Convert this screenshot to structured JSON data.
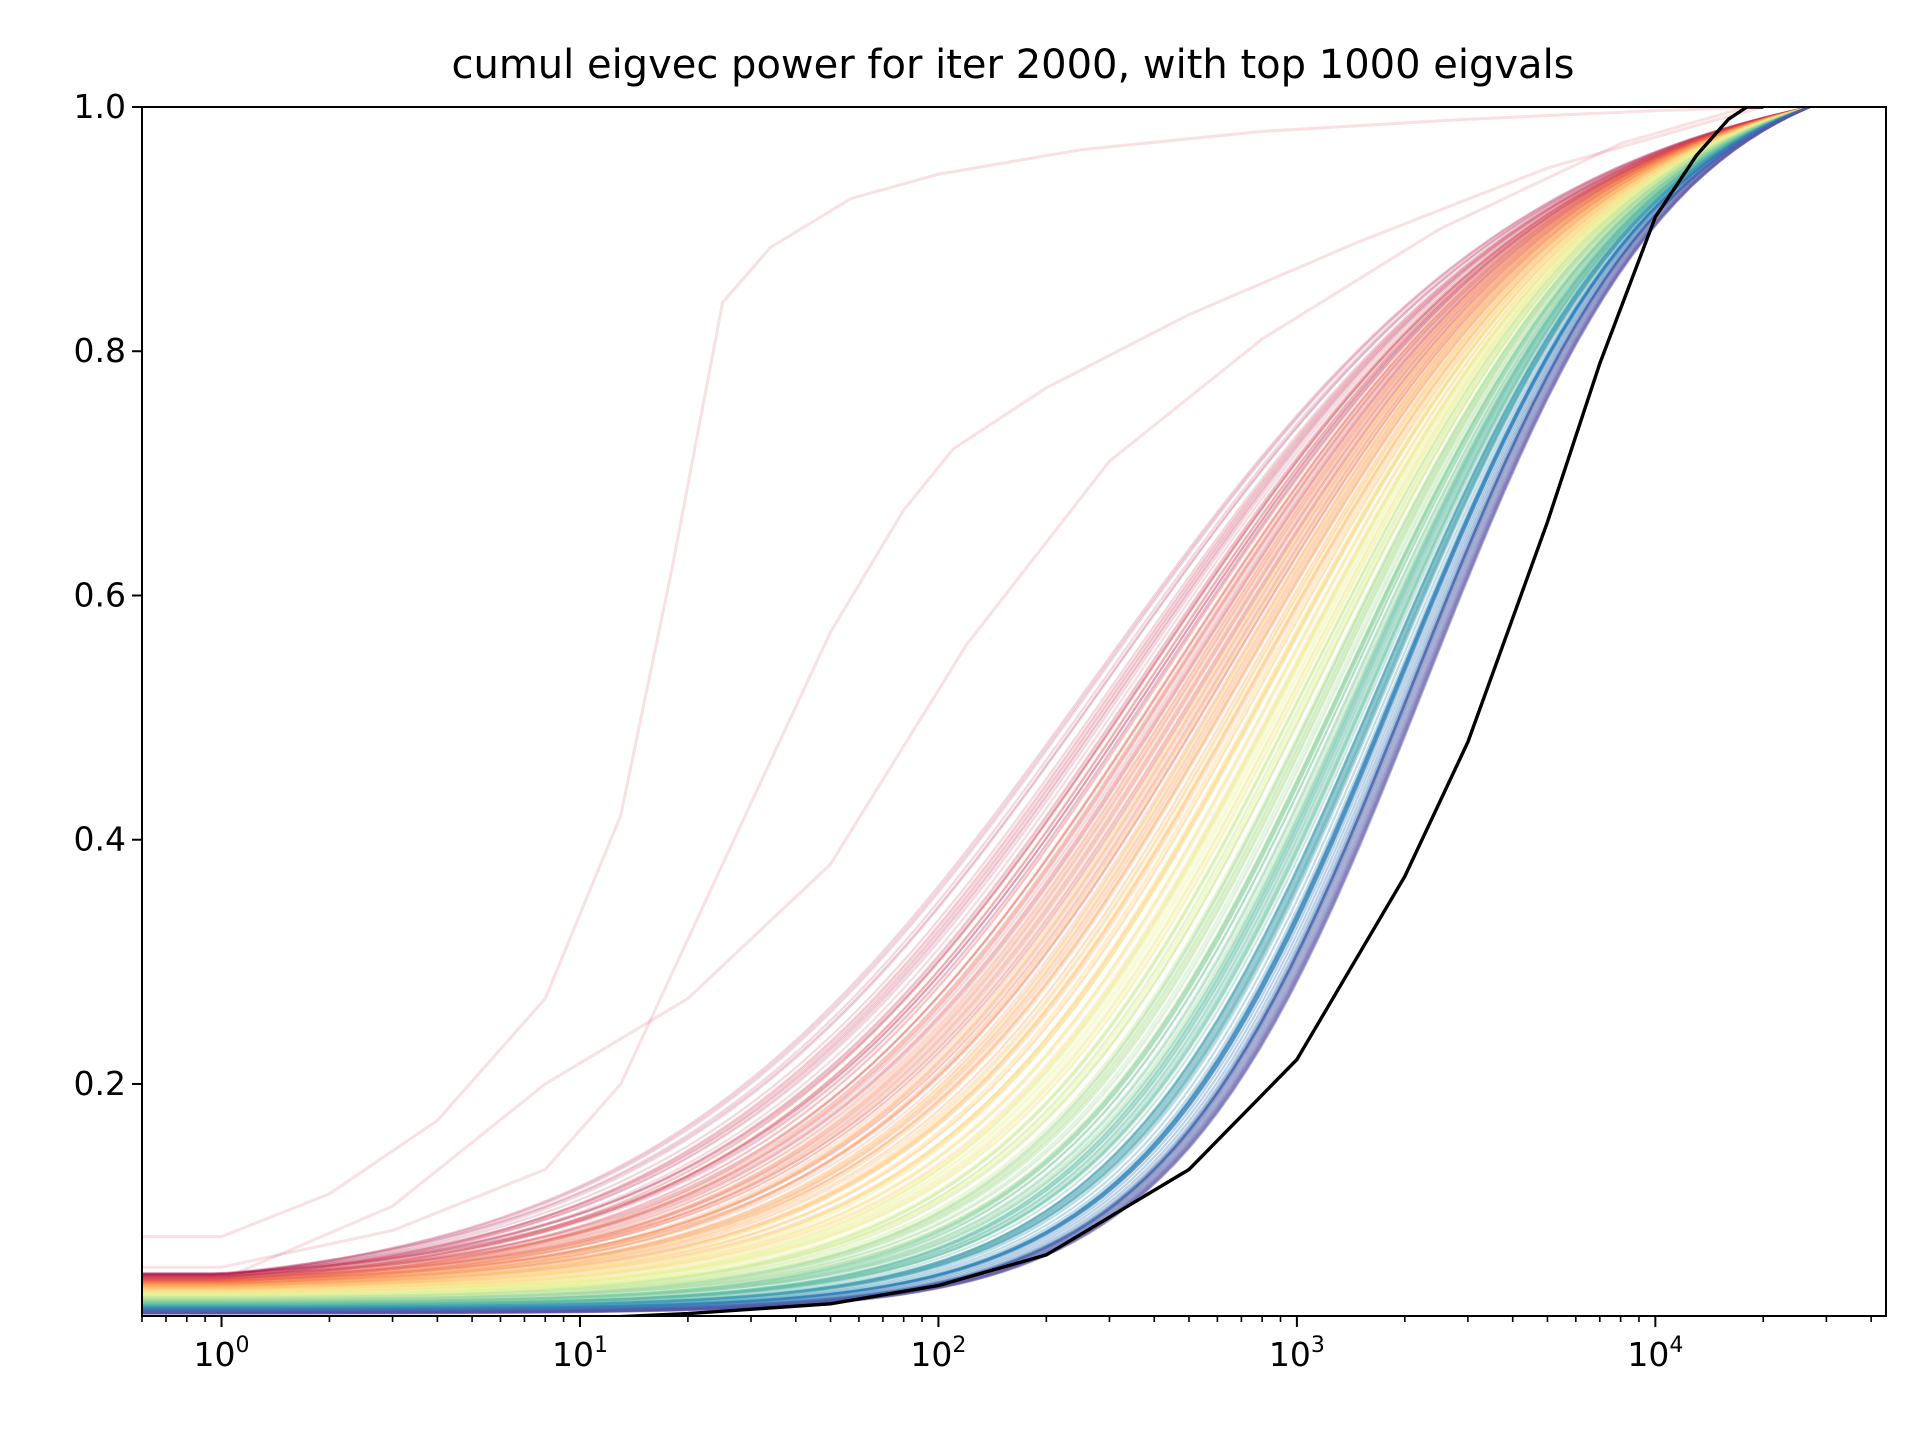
{
  "chart_data": {
    "type": "line",
    "title": "cumul eigvec power for iter 2000, with top 1000 eigvals",
    "xlabel": "",
    "ylabel": "",
    "x_scale": "log",
    "xlim": [
      0.6,
      44000
    ],
    "ylim": [
      0.01,
      1.0
    ],
    "grid": false,
    "legend": "none",
    "x_ticks": [
      {
        "base": "10",
        "exp": "0",
        "value": 1
      },
      {
        "base": "10",
        "exp": "1",
        "value": 10
      },
      {
        "base": "10",
        "exp": "2",
        "value": 100
      },
      {
        "base": "10",
        "exp": "3",
        "value": 1000
      },
      {
        "base": "10",
        "exp": "4",
        "value": 10000
      }
    ],
    "y_ticks": [
      {
        "label": "0.2",
        "value": 0.2
      },
      {
        "label": "0.4",
        "value": 0.4
      },
      {
        "label": "0.6",
        "value": 0.6
      },
      {
        "label": "0.8",
        "value": 0.8
      },
      {
        "label": "1.0",
        "value": 1.0
      }
    ],
    "colormap": [
      "#9e0142",
      "#d53e4f",
      "#f46d43",
      "#fdae61",
      "#fee08b",
      "#e6f598",
      "#abdda4",
      "#66c2a5",
      "#3288bd",
      "#5e4fa2"
    ],
    "band": {
      "line_count": 1000,
      "x_max": 27000,
      "line_alpha": 0.1,
      "half_power_x": {
        "first": 300,
        "last": 2300
      },
      "power_at_x1": {
        "first": 0.045,
        "last": 0.012
      }
    },
    "outlier_series": [
      {
        "x": [
          0.6,
          1,
          2,
          4,
          8,
          13,
          18,
          25,
          34,
          57,
          100,
          250,
          800,
          3000,
          10000,
          20000
        ],
        "y": [
          0.075,
          0.075,
          0.11,
          0.17,
          0.27,
          0.42,
          0.62,
          0.84,
          0.885,
          0.925,
          0.945,
          0.965,
          0.98,
          0.99,
          0.997,
          1.0
        ],
        "color": "#d53e4f",
        "alpha": 0.16
      },
      {
        "x": [
          0.6,
          1,
          3,
          8,
          13,
          25,
          50,
          80,
          110,
          200,
          500,
          1500,
          5000,
          15000,
          20000
        ],
        "y": [
          0.05,
          0.05,
          0.08,
          0.13,
          0.2,
          0.38,
          0.57,
          0.67,
          0.72,
          0.77,
          0.83,
          0.89,
          0.95,
          0.99,
          1.0
        ],
        "color": "#d53e4f",
        "alpha": 0.16
      },
      {
        "x": [
          0.6,
          1,
          3,
          8,
          20,
          50,
          120,
          300,
          800,
          2500,
          8000,
          18000
        ],
        "y": [
          0.04,
          0.04,
          0.1,
          0.2,
          0.27,
          0.38,
          0.56,
          0.71,
          0.81,
          0.9,
          0.97,
          1.0
        ],
        "color": "#d53e4f",
        "alpha": 0.16
      }
    ],
    "reference_series": {
      "color": "#000000",
      "x": [
        0.6,
        1,
        2,
        5,
        10,
        20,
        50,
        100,
        200,
        500,
        1000,
        2000,
        3000,
        5000,
        7000,
        10000,
        13000,
        16000,
        18000,
        20000
      ],
      "y": [
        0.004,
        0.004,
        0.005,
        0.006,
        0.008,
        0.012,
        0.02,
        0.035,
        0.06,
        0.13,
        0.22,
        0.37,
        0.48,
        0.66,
        0.79,
        0.91,
        0.96,
        0.99,
        1.0,
        1.0
      ]
    }
  }
}
